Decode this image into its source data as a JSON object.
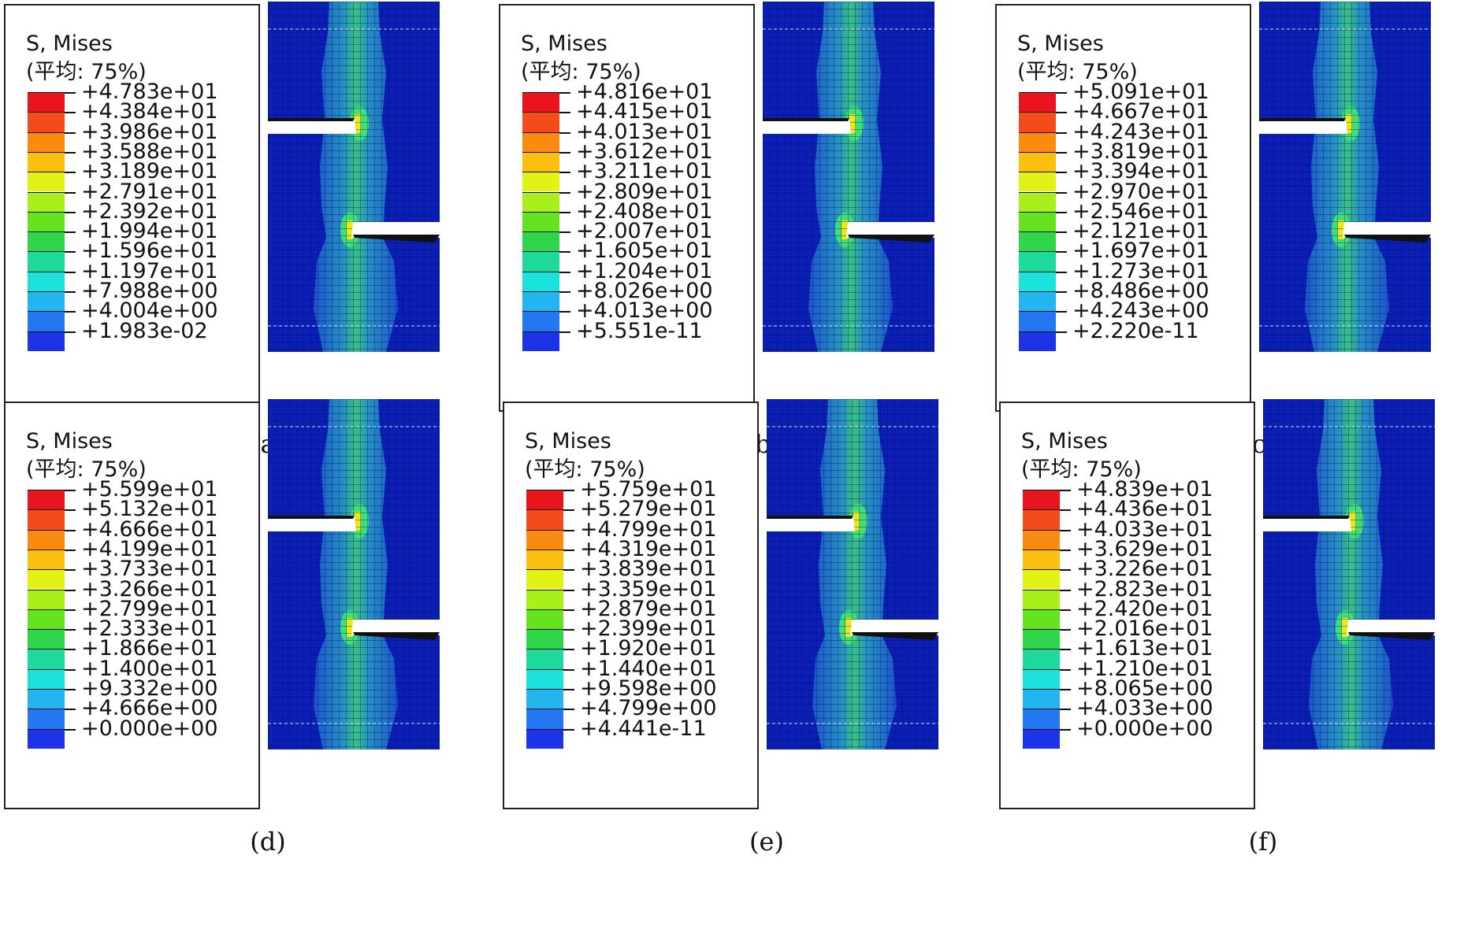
{
  "legend_title": "S, Mises",
  "legend_subtitle": "(平均: 75%)",
  "legend_colors": [
    "#e8141e",
    "#f44b1a",
    "#fb8a10",
    "#f9c00f",
    "#e2f215",
    "#a8ef1c",
    "#66e31f",
    "#2fd64c",
    "#1ed99c",
    "#1ce2dc",
    "#23b6ee",
    "#2377f0",
    "#1c33e8"
  ],
  "panels": [
    {
      "caption": "(a)",
      "values": [
        "+4.783e+01",
        "+4.384e+01",
        "+3.986e+01",
        "+3.588e+01",
        "+3.189e+01",
        "+2.791e+01",
        "+2.392e+01",
        "+1.994e+01",
        "+1.596e+01",
        "+1.197e+01",
        "+7.988e+00",
        "+4.004e+00",
        "+1.983e-02"
      ]
    },
    {
      "caption": "(b)",
      "values": [
        "+4.816e+01",
        "+4.415e+01",
        "+4.013e+01",
        "+3.612e+01",
        "+3.211e+01",
        "+2.809e+01",
        "+2.408e+01",
        "+2.007e+01",
        "+1.605e+01",
        "+1.204e+01",
        "+8.026e+00",
        "+4.013e+00",
        "+5.551e-11"
      ]
    },
    {
      "caption": "(c)",
      "values": [
        "+5.091e+01",
        "+4.667e+01",
        "+4.243e+01",
        "+3.819e+01",
        "+3.394e+01",
        "+2.970e+01",
        "+2.546e+01",
        "+2.121e+01",
        "+1.697e+01",
        "+1.273e+01",
        "+8.486e+00",
        "+4.243e+00",
        "+2.220e-11"
      ]
    },
    {
      "caption": "(d)",
      "values": [
        "+5.599e+01",
        "+5.132e+01",
        "+4.666e+01",
        "+4.199e+01",
        "+3.733e+01",
        "+3.266e+01",
        "+2.799e+01",
        "+2.333e+01",
        "+1.866e+01",
        "+1.400e+01",
        "+9.332e+00",
        "+4.666e+00",
        "+0.000e+00"
      ]
    },
    {
      "caption": "(e)",
      "values": [
        "+5.759e+01",
        "+5.279e+01",
        "+4.799e+01",
        "+4.319e+01",
        "+3.839e+01",
        "+3.359e+01",
        "+2.879e+01",
        "+2.399e+01",
        "+1.920e+01",
        "+1.440e+01",
        "+9.598e+00",
        "+4.799e+00",
        "+4.441e-11"
      ]
    },
    {
      "caption": "(f)",
      "values": [
        "+4.839e+01",
        "+4.436e+01",
        "+4.033e+01",
        "+3.629e+01",
        "+3.226e+01",
        "+2.823e+01",
        "+2.420e+01",
        "+2.016e+01",
        "+1.613e+01",
        "+1.210e+01",
        "+8.065e+00",
        "+4.033e+00",
        "+0.000e+00"
      ]
    }
  ],
  "mesh_colors": {
    "base": "#0a1fb8",
    "band": "#1e5fd4",
    "mid": "#2aa6c8",
    "hot": "#3fe07a",
    "peak": "#e8e81a",
    "grid": "#0a0f3a"
  }
}
